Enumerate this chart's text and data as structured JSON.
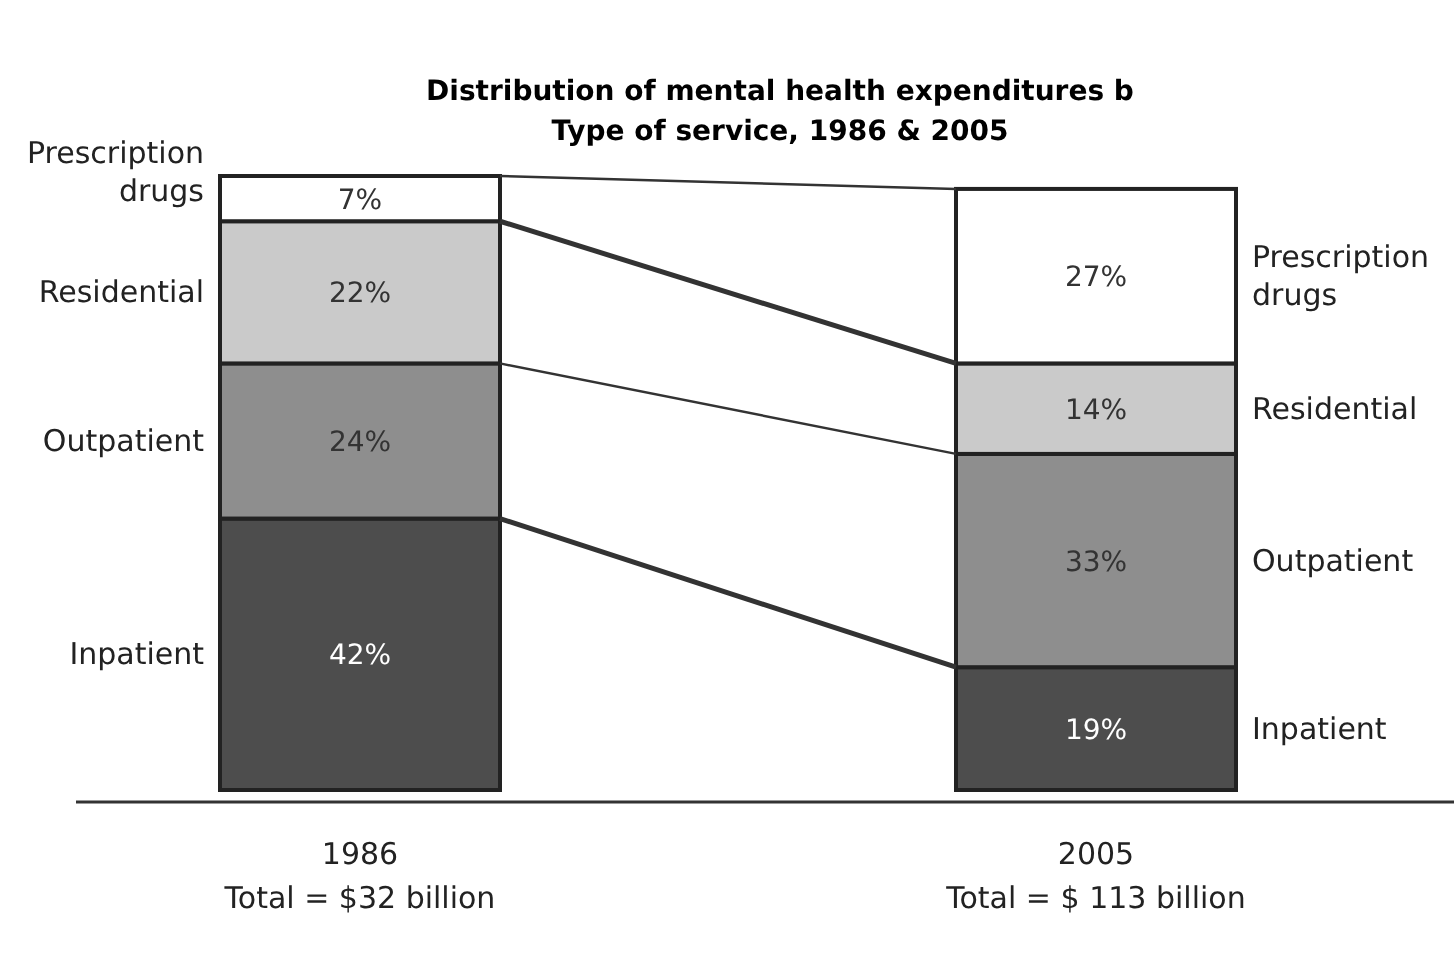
{
  "chart_data": {
    "type": "bar",
    "stacked": true,
    "title": "Distribution of mental health expenditures b",
    "subtitle": "Type of service, 1986 & 2005",
    "categories": [
      "1986",
      "2005"
    ],
    "series": [
      {
        "name": "Inpatient",
        "color": "#4d4d4d",
        "values": [
          42,
          19
        ],
        "value_labels": [
          "42%",
          "19%"
        ]
      },
      {
        "name": "Outpatient",
        "color": "#8e8e8e",
        "values": [
          24,
          33
        ],
        "value_labels": [
          "24%",
          "33%"
        ]
      },
      {
        "name": "Residential",
        "color": "#cacaca",
        "values": [
          22,
          14
        ],
        "value_labels": [
          "22%",
          "14%"
        ]
      },
      {
        "name": "Prescription drugs",
        "color": "#ffffff",
        "values": [
          7,
          27
        ],
        "value_labels": [
          "7%",
          "27%"
        ]
      }
    ],
    "annotations": [
      "Total = $32 billion",
      "Total = $ 113 billion"
    ]
  }
}
